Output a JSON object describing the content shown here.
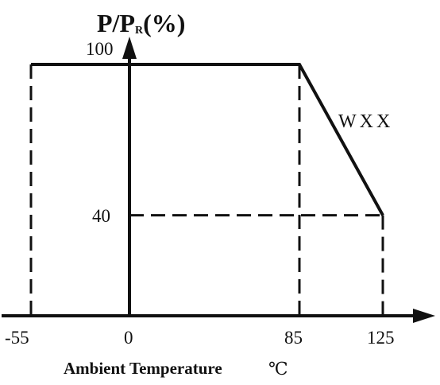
{
  "chart_data": {
    "type": "line",
    "ylabel_parts": {
      "main": "P/P",
      "sub": "R",
      "suffix": "(%)"
    },
    "xlabel": "Ambient Temperature",
    "xunit": "℃",
    "x_ticks": [
      "-55",
      "0",
      "85",
      "125"
    ],
    "y_ticks": [
      "100",
      "40"
    ],
    "xlim": [
      -55,
      125
    ],
    "ylim": [
      0,
      100
    ],
    "grid": false,
    "series": [
      {
        "name": "WXX",
        "x": [
          -55,
          85,
          125
        ],
        "y": [
          100,
          100,
          40
        ]
      }
    ],
    "guides": [
      {
        "from": [
          -55,
          100
        ],
        "to": [
          -55,
          0
        ]
      },
      {
        "from": [
          85,
          100
        ],
        "to": [
          85,
          0
        ]
      },
      {
        "from": [
          0,
          40
        ],
        "to": [
          125,
          40
        ]
      },
      {
        "from": [
          125,
          40
        ],
        "to": [
          125,
          0
        ]
      }
    ]
  }
}
